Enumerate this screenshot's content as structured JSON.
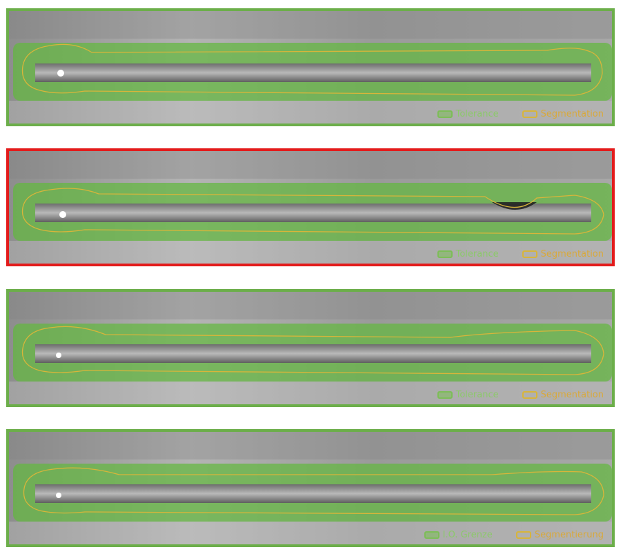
{
  "panels": [
    {
      "id": "weld-1",
      "status": "ok",
      "border_color": "#6cae4a",
      "legend": {
        "tolerance": "Tolerance",
        "segmentation": "Segmentation"
      }
    },
    {
      "id": "weld-2",
      "status": "fail",
      "border_color": "#e31b1b",
      "legend": {
        "tolerance": "Tolerance",
        "segmentation": "Segmentation"
      }
    },
    {
      "id": "weld-3",
      "status": "ok",
      "border_color": "#6cae4a",
      "legend": {
        "tolerance": "Tolerance",
        "segmentation": "Segmentation"
      }
    },
    {
      "id": "weld-4",
      "status": "ok",
      "border_color": "#6cae4a",
      "legend": {
        "tolerance": "I.O. Grenze",
        "segmentation": "Segmentierung"
      }
    }
  ],
  "colors": {
    "tolerance": "#7dbd58",
    "segmentation": "#d8b53a",
    "ok_border": "#6cae4a",
    "fail_border": "#e31b1b"
  }
}
